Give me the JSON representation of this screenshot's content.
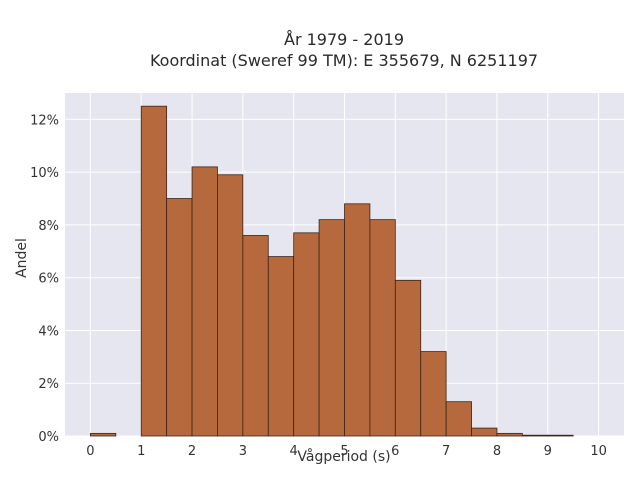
{
  "chart_data": {
    "type": "bar",
    "title_lines": [
      "År 1979 - 2019",
      "Koordinat (Sweref 99 TM): E 355679, N 6251197"
    ],
    "xlabel": "Vågperiod (s)",
    "ylabel": "Andel",
    "xlim": [
      -0.5,
      10.5
    ],
    "ylim": [
      0,
      0.13
    ],
    "x_ticks": [
      0,
      1,
      2,
      3,
      4,
      5,
      6,
      7,
      8,
      9,
      10
    ],
    "y_ticks": [
      0,
      0.02,
      0.04,
      0.06,
      0.08,
      0.1,
      0.12
    ],
    "y_tick_labels": [
      "0%",
      "2%",
      "4%",
      "6%",
      "8%",
      "10%",
      "12%"
    ],
    "bin_width": 0.5,
    "bins": [
      {
        "x0": 0.0,
        "value": 0.001
      },
      {
        "x0": 1.0,
        "value": 0.125
      },
      {
        "x0": 1.5,
        "value": 0.09
      },
      {
        "x0": 2.0,
        "value": 0.102
      },
      {
        "x0": 2.5,
        "value": 0.099
      },
      {
        "x0": 3.0,
        "value": 0.076
      },
      {
        "x0": 3.5,
        "value": 0.068
      },
      {
        "x0": 4.0,
        "value": 0.077
      },
      {
        "x0": 4.5,
        "value": 0.082
      },
      {
        "x0": 5.0,
        "value": 0.088
      },
      {
        "x0": 5.5,
        "value": 0.082
      },
      {
        "x0": 6.0,
        "value": 0.059
      },
      {
        "x0": 6.5,
        "value": 0.032
      },
      {
        "x0": 7.0,
        "value": 0.013
      },
      {
        "x0": 7.5,
        "value": 0.003
      },
      {
        "x0": 8.0,
        "value": 0.001
      },
      {
        "x0": 8.5,
        "value": 0.0003
      },
      {
        "x0": 9.0,
        "value": 0.0003
      }
    ],
    "grid": true,
    "colors": {
      "bar_fill": "#b5693d",
      "bar_stroke": "#3d2418",
      "plot_bg": "#e5e6f0",
      "grid": "#ffffff"
    }
  }
}
